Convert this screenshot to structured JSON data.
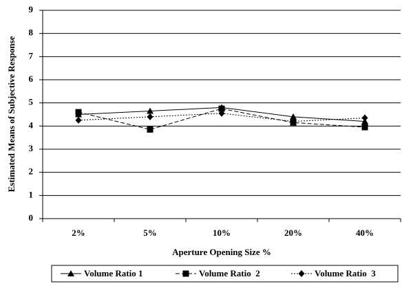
{
  "chart_data": {
    "type": "line",
    "y_label": "Estimated Means of Subjective Response",
    "x_label": "Aperture Opening Size %",
    "categories": [
      "2%",
      "5%",
      "10%",
      "20%",
      "40%"
    ],
    "series": [
      {
        "name": "Volume Ratio 1",
        "color": "#000000",
        "dash": "solid",
        "marker": "triangle",
        "values": [
          4.5,
          4.65,
          4.8,
          4.4,
          4.2
        ]
      },
      {
        "name": "Volume Ratio  2",
        "color": "#000000",
        "dash": "dashed",
        "marker": "square",
        "values": [
          4.6,
          3.85,
          4.75,
          4.15,
          3.95
        ]
      },
      {
        "name": "Volume Ratio  3",
        "color": "#000000",
        "dash": "dotted",
        "marker": "diamond",
        "values": [
          4.25,
          4.4,
          4.55,
          4.2,
          4.35
        ]
      }
    ],
    "ylim": [
      0,
      9
    ],
    "yticks": [
      0,
      1,
      2,
      3,
      4,
      5,
      6,
      7,
      8,
      9
    ],
    "grid": true,
    "legend": "bottom"
  }
}
